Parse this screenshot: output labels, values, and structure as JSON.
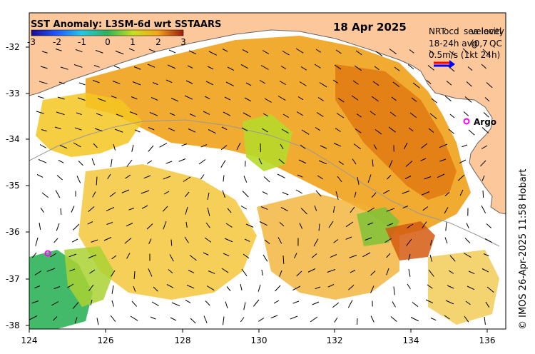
{
  "header": {
    "title": "SST Anomaly: L3SM-6d wrt SSTAARS",
    "date": "18 Apr 2025"
  },
  "colorbar": {
    "ticks": [
      "-3",
      "-2",
      "-1",
      "0",
      "1",
      "2",
      "3"
    ],
    "colors": [
      "#1a0a8c",
      "#1f5bff",
      "#27c6e6",
      "#2fb35a",
      "#c8df1f",
      "#f5a51c",
      "#9c1c0c"
    ]
  },
  "legend": {
    "line1a": "NRT",
    "line1b": "sea level",
    "line1c": "ocd",
    "line1d": "velocity",
    "line2a": "18-24h avg",
    "line2b": "(0,7",
    "line2c": "QC",
    "line3": "0.5m/s (1kt 24h)",
    "arrow_colors": [
      "#ff0000",
      "#0000ff"
    ]
  },
  "argo": {
    "label": "Argo",
    "marker_color": "#ff00ff"
  },
  "axes": {
    "x_ticks": [
      "124",
      "126",
      "128",
      "130",
      "132",
      "134",
      "136"
    ],
    "y_ticks": [
      "-32",
      "-33",
      "-34",
      "-35",
      "-36",
      "-37",
      "-38"
    ]
  },
  "credit": "© IMOS 26-Apr-2025 11:58 Hobart",
  "colors": {
    "land": "#fcc89b",
    "ocean_empty": "#ffffff",
    "coast": "#777777"
  }
}
